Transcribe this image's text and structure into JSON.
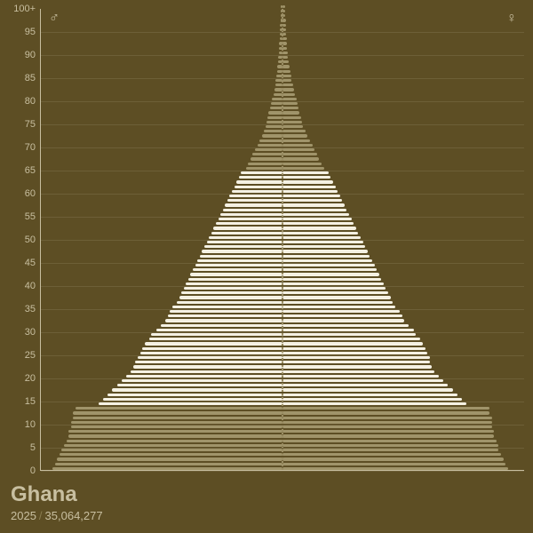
{
  "country": "Ghana",
  "year": "2025",
  "population": "35,064,277",
  "symbols": {
    "male": "♂",
    "female": "♀"
  },
  "y_ticks": [
    0,
    5,
    10,
    15,
    20,
    25,
    30,
    35,
    40,
    45,
    50,
    55,
    60,
    65,
    70,
    75,
    80,
    85,
    90,
    95
  ],
  "y_top_label": "100+",
  "age_max": 100,
  "colors": {
    "background": "#5d4e24",
    "axis": "#c8bfa0",
    "grid": "#6d5f37",
    "text": "#c8bfa0",
    "bar_highlight": "#f5f1e3",
    "bar_shadow": "#a0946a",
    "center_dots": "#9a8d63"
  },
  "highlight_range": [
    14,
    64
  ],
  "max_bar_percent": 100,
  "bars": [
    {
      "age": 0,
      "m": 100,
      "f": 98
    },
    {
      "age": 1,
      "m": 99,
      "f": 97
    },
    {
      "age": 2,
      "m": 98,
      "f": 96
    },
    {
      "age": 3,
      "m": 97,
      "f": 95
    },
    {
      "age": 4,
      "m": 96,
      "f": 94
    },
    {
      "age": 5,
      "m": 95,
      "f": 94
    },
    {
      "age": 6,
      "m": 94,
      "f": 93
    },
    {
      "age": 7,
      "m": 93,
      "f": 92
    },
    {
      "age": 8,
      "m": 93,
      "f": 92
    },
    {
      "age": 9,
      "m": 92,
      "f": 91
    },
    {
      "age": 10,
      "m": 92,
      "f": 91
    },
    {
      "age": 11,
      "m": 91,
      "f": 91
    },
    {
      "age": 12,
      "m": 91,
      "f": 90
    },
    {
      "age": 13,
      "m": 90,
      "f": 90
    },
    {
      "age": 14,
      "m": 80,
      "f": 80
    },
    {
      "age": 15,
      "m": 78,
      "f": 78
    },
    {
      "age": 16,
      "m": 76,
      "f": 76
    },
    {
      "age": 17,
      "m": 74,
      "f": 74
    },
    {
      "age": 18,
      "m": 72,
      "f": 72
    },
    {
      "age": 19,
      "m": 70,
      "f": 70
    },
    {
      "age": 20,
      "m": 68,
      "f": 68
    },
    {
      "age": 21,
      "m": 66,
      "f": 66
    },
    {
      "age": 22,
      "m": 65,
      "f": 65
    },
    {
      "age": 23,
      "m": 64,
      "f": 64
    },
    {
      "age": 24,
      "m": 63,
      "f": 64
    },
    {
      "age": 25,
      "m": 62,
      "f": 63
    },
    {
      "age": 26,
      "m": 61,
      "f": 62
    },
    {
      "age": 27,
      "m": 60,
      "f": 61
    },
    {
      "age": 28,
      "m": 58,
      "f": 60
    },
    {
      "age": 29,
      "m": 57,
      "f": 58
    },
    {
      "age": 30,
      "m": 55,
      "f": 57
    },
    {
      "age": 31,
      "m": 53,
      "f": 55
    },
    {
      "age": 32,
      "m": 51,
      "f": 53
    },
    {
      "age": 33,
      "m": 50,
      "f": 52
    },
    {
      "age": 34,
      "m": 49,
      "f": 51
    },
    {
      "age": 35,
      "m": 48,
      "f": 49
    },
    {
      "age": 36,
      "m": 46,
      "f": 48
    },
    {
      "age": 37,
      "m": 45,
      "f": 47
    },
    {
      "age": 38,
      "m": 44,
      "f": 46
    },
    {
      "age": 39,
      "m": 43,
      "f": 45
    },
    {
      "age": 40,
      "m": 42,
      "f": 44
    },
    {
      "age": 41,
      "m": 41,
      "f": 43
    },
    {
      "age": 42,
      "m": 40,
      "f": 42
    },
    {
      "age": 43,
      "m": 39,
      "f": 41
    },
    {
      "age": 44,
      "m": 38,
      "f": 40
    },
    {
      "age": 45,
      "m": 37,
      "f": 39
    },
    {
      "age": 46,
      "m": 36,
      "f": 38
    },
    {
      "age": 47,
      "m": 35,
      "f": 37
    },
    {
      "age": 48,
      "m": 34,
      "f": 36
    },
    {
      "age": 49,
      "m": 33,
      "f": 35
    },
    {
      "age": 50,
      "m": 32,
      "f": 34
    },
    {
      "age": 51,
      "m": 31,
      "f": 33
    },
    {
      "age": 52,
      "m": 30,
      "f": 32
    },
    {
      "age": 53,
      "m": 29,
      "f": 31
    },
    {
      "age": 54,
      "m": 28,
      "f": 30
    },
    {
      "age": 55,
      "m": 27,
      "f": 29
    },
    {
      "age": 56,
      "m": 26,
      "f": 28
    },
    {
      "age": 57,
      "m": 25,
      "f": 27
    },
    {
      "age": 58,
      "m": 24,
      "f": 26
    },
    {
      "age": 59,
      "m": 23,
      "f": 25
    },
    {
      "age": 60,
      "m": 22,
      "f": 24
    },
    {
      "age": 61,
      "m": 21,
      "f": 23
    },
    {
      "age": 62,
      "m": 20,
      "f": 22
    },
    {
      "age": 63,
      "m": 19,
      "f": 21
    },
    {
      "age": 64,
      "m": 18,
      "f": 20
    },
    {
      "age": 65,
      "m": 16,
      "f": 18
    },
    {
      "age": 66,
      "m": 15,
      "f": 17
    },
    {
      "age": 67,
      "m": 14,
      "f": 16
    },
    {
      "age": 68,
      "m": 13,
      "f": 15
    },
    {
      "age": 69,
      "m": 12,
      "f": 14
    },
    {
      "age": 70,
      "m": 11,
      "f": 13
    },
    {
      "age": 71,
      "m": 10,
      "f": 12
    },
    {
      "age": 72,
      "m": 9,
      "f": 11
    },
    {
      "age": 73,
      "m": 8,
      "f": 10
    },
    {
      "age": 74,
      "m": 7.5,
      "f": 9
    },
    {
      "age": 75,
      "m": 7,
      "f": 8.5
    },
    {
      "age": 76,
      "m": 6.5,
      "f": 8
    },
    {
      "age": 77,
      "m": 6,
      "f": 7.5
    },
    {
      "age": 78,
      "m": 5.5,
      "f": 7
    },
    {
      "age": 79,
      "m": 5,
      "f": 6.5
    },
    {
      "age": 80,
      "m": 4.5,
      "f": 6
    },
    {
      "age": 81,
      "m": 4,
      "f": 5.5
    },
    {
      "age": 82,
      "m": 3.5,
      "f": 5
    },
    {
      "age": 83,
      "m": 3.2,
      "f": 4.5
    },
    {
      "age": 84,
      "m": 3,
      "f": 4
    },
    {
      "age": 85,
      "m": 2.7,
      "f": 3.7
    },
    {
      "age": 86,
      "m": 2.4,
      "f": 3.4
    },
    {
      "age": 87,
      "m": 2.2,
      "f": 3.1
    },
    {
      "age": 88,
      "m": 2,
      "f": 2.8
    },
    {
      "age": 89,
      "m": 1.8,
      "f": 2.5
    },
    {
      "age": 90,
      "m": 1.6,
      "f": 2.3
    },
    {
      "age": 91,
      "m": 1.5,
      "f": 2.1
    },
    {
      "age": 92,
      "m": 1.4,
      "f": 1.9
    },
    {
      "age": 93,
      "m": 1.3,
      "f": 1.8
    },
    {
      "age": 94,
      "m": 1.2,
      "f": 1.7
    },
    {
      "age": 95,
      "m": 1.1,
      "f": 1.6
    },
    {
      "age": 96,
      "m": 1.0,
      "f": 1.5
    },
    {
      "age": 97,
      "m": 0.9,
      "f": 1.4
    },
    {
      "age": 98,
      "m": 0.8,
      "f": 1.3
    },
    {
      "age": 99,
      "m": 0.7,
      "f": 1.2
    },
    {
      "age": 100,
      "m": 0.6,
      "f": 1.0
    }
  ]
}
